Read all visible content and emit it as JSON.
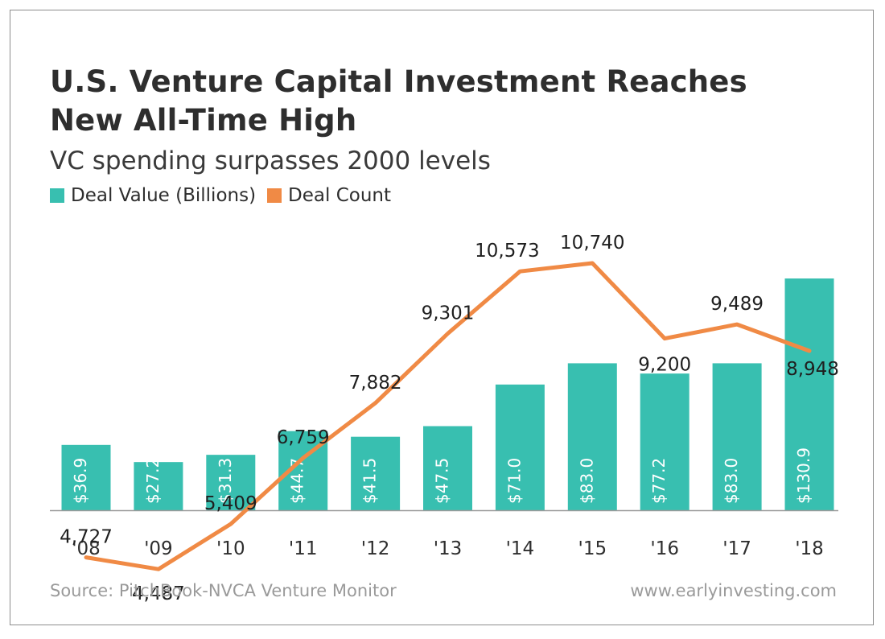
{
  "header": {
    "title_line1": "U.S. Venture Capital Investment Reaches",
    "title_line2": "New All-Time High",
    "subtitle": "VC spending surpasses 2000 levels"
  },
  "legend": {
    "items": [
      {
        "label": "Deal Value (Billions)",
        "color": "#38bfb0"
      },
      {
        "label": "Deal Count",
        "color": "#f08a45"
      }
    ],
    "placement": "top-left"
  },
  "footer": {
    "source": "Source: PitchBook-NVCA Venture Monitor",
    "website": "www.earlyinvesting.com"
  },
  "chart_data": {
    "type": "bar",
    "categories": [
      "'08",
      "'09",
      "'10",
      "'11",
      "'12",
      "'13",
      "'14",
      "'15",
      "'16",
      "'17",
      "'18"
    ],
    "series": [
      {
        "name": "Deal Value (Billions)",
        "type": "bar",
        "values": [
          36.9,
          27.2,
          31.3,
          44.7,
          41.5,
          47.5,
          71.0,
          83.0,
          77.2,
          83.0,
          130.9
        ],
        "labels": [
          "$36.9",
          "$27.2",
          "$31.3",
          "$44.7",
          "$41.5",
          "$47.5",
          "$71.0",
          "$83.0",
          "$77.2",
          "$83.0",
          "$130.9"
        ],
        "color": "#38bfb0",
        "ylim": [
          0,
          150
        ]
      },
      {
        "name": "Deal Count",
        "type": "line",
        "values": [
          4727,
          4487,
          5409,
          6759,
          7882,
          9301,
          10573,
          10740,
          9200,
          9489,
          8948
        ],
        "labels": [
          "4,727",
          "4,487",
          "5,409",
          "6,759",
          "7,882",
          "9,301",
          "10,573",
          "10,740",
          "9,200",
          "9,489",
          "8,948"
        ],
        "color": "#f08a45",
        "ylim": [
          0,
          12000
        ]
      }
    ],
    "grid": false
  }
}
